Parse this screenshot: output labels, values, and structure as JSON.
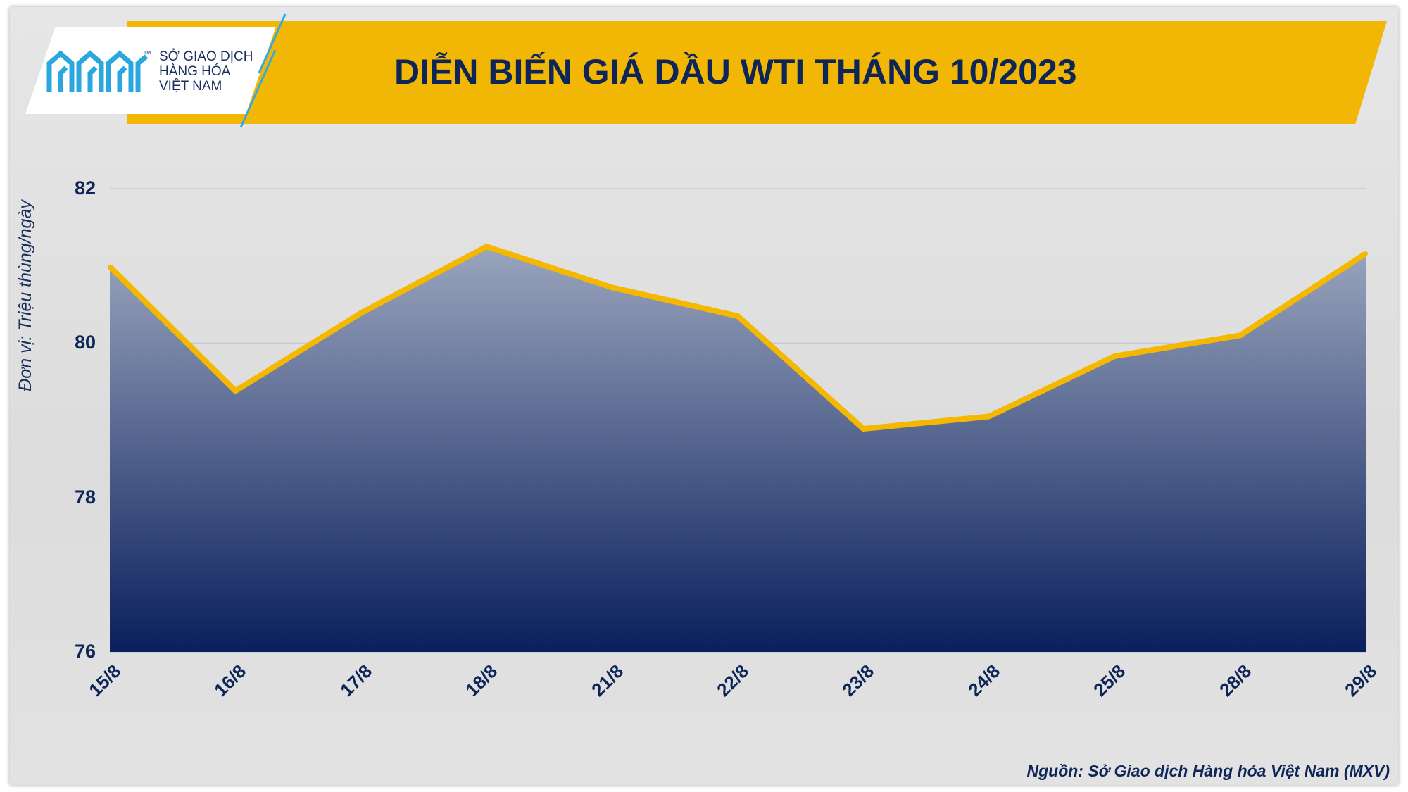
{
  "logo": {
    "line1": "SỞ GIAO DỊCH",
    "line2": "HÀNG HÓA",
    "line3": "VIỆT NAM",
    "tm": "TM",
    "icon": "mxv-logo-icon"
  },
  "colors": {
    "title_band": "#f2b705",
    "title_text": "#0d2557",
    "line": "#f5b800",
    "area_top": "#9aa5bd",
    "area_bottom": "#0a1f5c"
  },
  "chart_data": {
    "type": "area",
    "title": "DIỄN BIẾN GIÁ DẦU WTI THÁNG 10/2023",
    "ylabel": "Đơn vị: Triệu thùng/ngày",
    "xlabel": "",
    "categories": [
      "15/8",
      "16/8",
      "17/8",
      "18/8",
      "21/8",
      "22/8",
      "23/8",
      "24/8",
      "25/8",
      "28/8",
      "29/8"
    ],
    "series": [
      {
        "values": [
          80.99,
          79.38,
          80.39,
          81.25,
          80.72,
          80.35,
          78.89,
          79.05,
          79.83,
          80.1,
          81.16
        ]
      }
    ],
    "ylim": [
      76,
      82
    ],
    "yticks": [
      "82",
      "80",
      "78",
      "76"
    ],
    "grid": true,
    "legend": "none"
  },
  "source": "Nguồn: Sở Giao dịch Hàng hóa Việt Nam (MXV)"
}
